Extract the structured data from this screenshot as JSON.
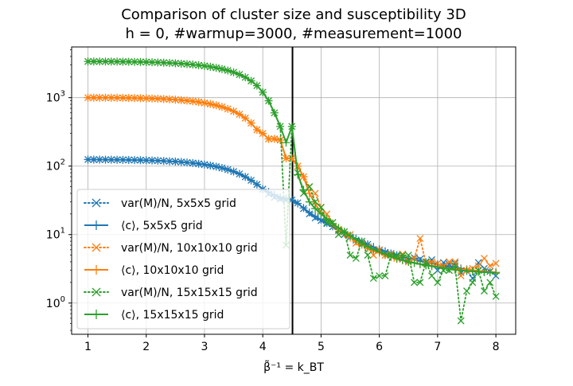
{
  "chart_data": {
    "type": "line",
    "title": "Comparison of cluster size and susceptibility 3D",
    "subtitle": "h = 0, #warmup=3000, #measurement=1000",
    "xlabel": "β̃⁻¹ = k_BT",
    "ylabel": "",
    "yscale": "log",
    "xlim": [
      0.72,
      8.34
    ],
    "ylim": [
      0.35,
      5500
    ],
    "x_ticks": [
      1,
      2,
      3,
      4,
      5,
      6,
      7,
      8
    ],
    "x_tick_labels": [
      "1",
      "2",
      "3",
      "4",
      "5",
      "6",
      "7",
      "8"
    ],
    "y_ticks": [
      1,
      10,
      100,
      1000
    ],
    "grid": true,
    "legend_position": "lower-left",
    "vertical_line": {
      "x": 4.51,
      "color": "#000000"
    },
    "series": [
      {
        "name": "var(M)/N, 5x5x5 grid",
        "color": "#1f77b4",
        "style": "dotted",
        "marker": "x",
        "x": [
          1.0,
          1.1,
          1.2,
          1.3,
          1.4,
          1.5,
          1.6,
          1.7,
          1.8,
          1.9,
          2.0,
          2.1,
          2.2,
          2.3,
          2.4,
          2.5,
          2.6,
          2.7,
          2.8,
          2.9,
          3.0,
          3.1,
          3.2,
          3.3,
          3.4,
          3.5,
          3.6,
          3.7,
          3.8,
          3.9,
          4.0,
          4.1,
          4.2,
          4.3,
          4.4,
          4.5,
          4.6,
          4.7,
          4.8,
          4.9,
          5.0,
          5.1,
          5.2,
          5.3,
          5.4,
          5.5,
          5.6,
          5.7,
          5.8,
          5.9,
          6.0,
          6.1,
          6.2,
          6.3,
          6.4,
          6.5,
          6.6,
          6.7,
          6.8,
          6.9,
          7.0,
          7.1,
          7.2,
          7.3,
          7.4,
          7.5,
          7.6,
          7.7,
          7.8,
          7.9,
          8.0
        ],
        "y": [
          124.8,
          124.6,
          124.5,
          124.3,
          124.1,
          123.8,
          123.5,
          123.1,
          122.7,
          122.2,
          121.6,
          120.9,
          120.0,
          119.0,
          117.8,
          116.5,
          114.9,
          113.0,
          110.8,
          108.3,
          105.4,
          102.1,
          98.4,
          94.0,
          89.0,
          83.3,
          76.9,
          69.7,
          62.0,
          54.0,
          46.0,
          39.0,
          35.0,
          33.0,
          32.5,
          32.0,
          29.0,
          24.0,
          20.0,
          17.5,
          16.0,
          14.5,
          13.0,
          11.5,
          10.0,
          9.2,
          8.3,
          7.5,
          7.2,
          6.0,
          5.9,
          5.5,
          5.3,
          4.8,
          4.4,
          4.2,
          4.6,
          4.4,
          4.0,
          4.3,
          3.0,
          3.9,
          3.7,
          3.8,
          2.8,
          3.0,
          2.3,
          3.9,
          3.2,
          2.9,
          2.5
        ]
      },
      {
        "name": "⟨c⟩, 5x5x5 grid",
        "color": "#1f77b4",
        "style": "solid",
        "marker": "+",
        "x": [
          1.0,
          1.1,
          1.2,
          1.3,
          1.4,
          1.5,
          1.6,
          1.7,
          1.8,
          1.9,
          2.0,
          2.1,
          2.2,
          2.3,
          2.4,
          2.5,
          2.6,
          2.7,
          2.8,
          2.9,
          3.0,
          3.1,
          3.2,
          3.3,
          3.4,
          3.5,
          3.6,
          3.7,
          3.8,
          3.9,
          4.0,
          4.1,
          4.2,
          4.3,
          4.4,
          4.5,
          4.6,
          4.7,
          4.8,
          4.9,
          5.0,
          5.1,
          5.2,
          5.3,
          5.4,
          5.5,
          5.6,
          5.7,
          5.8,
          5.9,
          6.0,
          6.1,
          6.2,
          6.3,
          6.4,
          6.5,
          6.6,
          6.7,
          6.8,
          6.9,
          7.0,
          7.1,
          7.2,
          7.3,
          7.4,
          7.5,
          7.6,
          7.7,
          7.8,
          7.9,
          8.0
        ],
        "y": [
          124.8,
          124.6,
          124.5,
          124.3,
          124.1,
          123.8,
          123.5,
          123.1,
          122.7,
          122.2,
          121.6,
          120.9,
          120.0,
          119.0,
          117.8,
          116.5,
          114.9,
          113.0,
          110.8,
          108.3,
          105.4,
          102.1,
          98.4,
          94.0,
          89.0,
          83.3,
          76.9,
          69.7,
          62.0,
          54.0,
          46.0,
          42.0,
          38.0,
          35.0,
          33.5,
          32.0,
          28.5,
          24.5,
          21.0,
          18.5,
          16.5,
          14.8,
          13.2,
          11.9,
          10.7,
          9.6,
          8.7,
          7.9,
          7.2,
          6.6,
          6.1,
          5.7,
          5.3,
          5.0,
          4.7,
          4.5,
          4.3,
          4.1,
          3.95,
          3.8,
          3.65,
          3.5,
          3.4,
          3.3,
          3.2,
          3.1,
          3.0,
          2.95,
          2.9,
          2.85,
          2.8
        ]
      },
      {
        "name": "var(M)/N, 10x10x10 grid",
        "color": "#ff7f0e",
        "style": "dotted",
        "marker": "x",
        "x": [
          1.0,
          1.1,
          1.2,
          1.3,
          1.4,
          1.5,
          1.6,
          1.7,
          1.8,
          1.9,
          2.0,
          2.1,
          2.2,
          2.3,
          2.4,
          2.5,
          2.6,
          2.7,
          2.8,
          2.9,
          3.0,
          3.1,
          3.2,
          3.3,
          3.4,
          3.5,
          3.6,
          3.7,
          3.8,
          3.9,
          4.0,
          4.1,
          4.2,
          4.3,
          4.4,
          4.5,
          4.6,
          4.7,
          4.8,
          4.9,
          5.0,
          5.1,
          5.2,
          5.3,
          5.4,
          5.5,
          5.6,
          5.7,
          5.8,
          5.9,
          6.0,
          6.1,
          6.2,
          6.3,
          6.4,
          6.5,
          6.6,
          6.7,
          6.8,
          6.9,
          7.0,
          7.1,
          7.2,
          7.3,
          7.4,
          7.5,
          7.6,
          7.7,
          7.8,
          7.9,
          8.0
        ],
        "y": [
          1000,
          999,
          998,
          997,
          996,
          994,
          992,
          989,
          986,
          982,
          977,
          971,
          964,
          956,
          946,
          935,
          921,
          905,
          886,
          864,
          838,
          808,
          773,
          733,
          686,
          633,
          572,
          503,
          426,
          340,
          300,
          250,
          250,
          240,
          130,
          130,
          100,
          70,
          50,
          40,
          25,
          20,
          15,
          12,
          11,
          10,
          7.5,
          7.2,
          6.5,
          5.0,
          6.0,
          5.0,
          5.2,
          4.5,
          5.2,
          4.0,
          4.5,
          8.8,
          3.8,
          4.0,
          3.8,
          3.5,
          4.0,
          4.0,
          2.5,
          3.0,
          3.2,
          3.5,
          4.5,
          3.5,
          3.8
        ]
      },
      {
        "name": "⟨c⟩, 10x10x10 grid",
        "color": "#ff7f0e",
        "style": "solid",
        "marker": "+",
        "x": [
          1.0,
          1.1,
          1.2,
          1.3,
          1.4,
          1.5,
          1.6,
          1.7,
          1.8,
          1.9,
          2.0,
          2.1,
          2.2,
          2.3,
          2.4,
          2.5,
          2.6,
          2.7,
          2.8,
          2.9,
          3.0,
          3.1,
          3.2,
          3.3,
          3.4,
          3.5,
          3.6,
          3.7,
          3.8,
          3.9,
          4.0,
          4.1,
          4.2,
          4.3,
          4.4,
          4.5,
          4.6,
          4.7,
          4.8,
          4.9,
          5.0,
          5.1,
          5.2,
          5.3,
          5.4,
          5.5,
          5.6,
          5.7,
          5.8,
          5.9,
          6.0,
          6.1,
          6.2,
          6.3,
          6.4,
          6.5,
          6.6,
          6.7,
          6.8,
          6.9,
          7.0,
          7.1,
          7.2,
          7.3,
          7.4,
          7.5,
          7.6,
          7.7,
          7.8,
          7.9,
          8.0
        ],
        "y": [
          1000,
          999,
          998,
          997,
          996,
          994,
          992,
          989,
          986,
          982,
          977,
          971,
          964,
          956,
          946,
          935,
          921,
          905,
          886,
          864,
          838,
          808,
          773,
          733,
          686,
          633,
          572,
          503,
          426,
          340,
          300,
          250,
          250,
          240,
          130,
          130,
          100,
          70,
          40,
          28,
          21,
          17,
          14,
          12,
          10.3,
          9.0,
          8.0,
          7.1,
          6.4,
          5.8,
          5.4,
          5.0,
          4.7,
          4.4,
          4.2,
          4.0,
          3.85,
          3.7,
          3.6,
          3.5,
          3.4,
          3.3,
          3.2,
          3.15,
          3.1,
          3.05,
          3.0,
          2.95,
          2.9,
          2.85,
          2.8
        ]
      },
      {
        "name": "var(M)/N, 15x15x15 grid",
        "color": "#2ca02c",
        "style": "dotted",
        "marker": "x",
        "x": [
          1.0,
          1.1,
          1.2,
          1.3,
          1.4,
          1.5,
          1.6,
          1.7,
          1.8,
          1.9,
          2.0,
          2.1,
          2.2,
          2.3,
          2.4,
          2.5,
          2.6,
          2.7,
          2.8,
          2.9,
          3.0,
          3.1,
          3.2,
          3.3,
          3.4,
          3.5,
          3.6,
          3.7,
          3.8,
          3.9,
          4.0,
          4.1,
          4.2,
          4.3,
          4.4,
          4.5,
          4.6,
          4.7,
          4.8,
          4.9,
          5.0,
          5.1,
          5.2,
          5.3,
          5.4,
          5.5,
          5.6,
          5.7,
          5.8,
          5.9,
          6.0,
          6.1,
          6.2,
          6.3,
          6.4,
          6.5,
          6.6,
          6.7,
          6.8,
          6.9,
          7.0,
          7.1,
          7.2,
          7.3,
          7.4,
          7.5,
          7.6,
          7.7,
          7.8,
          7.9,
          8.0
        ],
        "y": [
          3375,
          3373,
          3371,
          3368,
          3364,
          3359,
          3352,
          3344,
          3334,
          3322,
          3307,
          3289,
          3268,
          3243,
          3214,
          3180,
          3140,
          3094,
          3040,
          2978,
          2906,
          2823,
          2728,
          2618,
          2491,
          2345,
          2176,
          1981,
          1757,
          1500,
          1200,
          900,
          600,
          380,
          7.0,
          380,
          80,
          40,
          50,
          30,
          25,
          15,
          15,
          10,
          11,
          5,
          4.5,
          8,
          5,
          2.3,
          2.5,
          2.5,
          5,
          5,
          5,
          5,
          2,
          2,
          4,
          2.5,
          2.0,
          3,
          3.0,
          3.5,
          0.55,
          1.5,
          2,
          3.0,
          1.5,
          2,
          1.25
        ]
      },
      {
        "name": "⟨c⟩, 15x15x15 grid",
        "color": "#2ca02c",
        "style": "solid",
        "marker": "+",
        "x": [
          1.0,
          1.1,
          1.2,
          1.3,
          1.4,
          1.5,
          1.6,
          1.7,
          1.8,
          1.9,
          2.0,
          2.1,
          2.2,
          2.3,
          2.4,
          2.5,
          2.6,
          2.7,
          2.8,
          2.9,
          3.0,
          3.1,
          3.2,
          3.3,
          3.4,
          3.5,
          3.6,
          3.7,
          3.8,
          3.9,
          4.0,
          4.1,
          4.2,
          4.3,
          4.4,
          4.5,
          4.6,
          4.7,
          4.8,
          4.9,
          5.0,
          5.1,
          5.2,
          5.3,
          5.4,
          5.5,
          5.6,
          5.7,
          5.8,
          5.9,
          6.0,
          6.1,
          6.2,
          6.3,
          6.4,
          6.5,
          6.6,
          6.7,
          6.8,
          6.9,
          7.0,
          7.1,
          7.2,
          7.3,
          7.4,
          7.5,
          7.6,
          7.7,
          7.8,
          7.9,
          8.0
        ],
        "y": [
          3375,
          3373,
          3371,
          3368,
          3364,
          3359,
          3352,
          3344,
          3334,
          3322,
          3307,
          3289,
          3268,
          3243,
          3214,
          3180,
          3140,
          3094,
          3040,
          2978,
          2906,
          2823,
          2728,
          2618,
          2491,
          2345,
          2176,
          1981,
          1757,
          1500,
          1200,
          900,
          600,
          380,
          220,
          380,
          75,
          45,
          30,
          24,
          20,
          17,
          14.5,
          12.5,
          11,
          9.6,
          8.5,
          7.5,
          6.7,
          6.1,
          5.6,
          5.2,
          4.8,
          4.5,
          4.25,
          4.0,
          3.85,
          3.7,
          3.55,
          3.45,
          3.35,
          3.25,
          3.15,
          3.05,
          3.0,
          2.95,
          2.9,
          2.85,
          2.82,
          2.8,
          2.75
        ]
      }
    ]
  }
}
